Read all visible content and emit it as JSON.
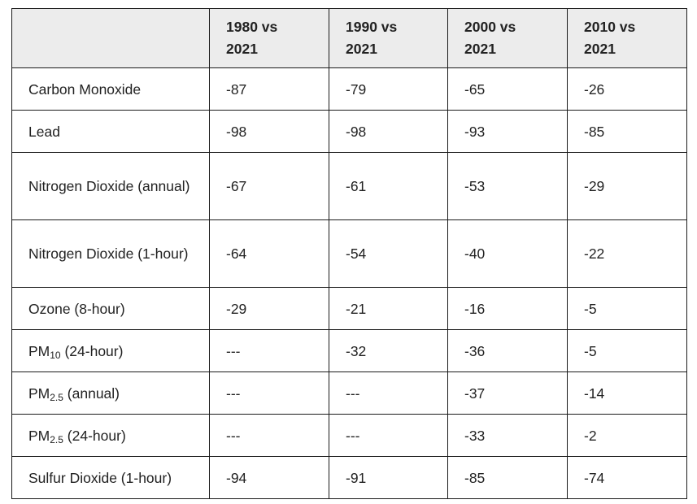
{
  "table": {
    "columns": [
      "",
      "1980 vs 2021",
      "1990 vs 2021",
      "2000 vs 2021",
      "2010 vs 2021"
    ],
    "rows": [
      {
        "base": "Carbon Monoxide",
        "sub": "",
        "suffix": "",
        "values": [
          "-87",
          "-79",
          "-65",
          "-26"
        ]
      },
      {
        "base": "Lead",
        "sub": "",
        "suffix": "",
        "values": [
          "-98",
          "-98",
          "-93",
          "-85"
        ]
      },
      {
        "base": "Nitrogen Dioxide (annual)",
        "sub": "",
        "suffix": "",
        "values": [
          "-67",
          "-61",
          "-53",
          "-29"
        ]
      },
      {
        "base": "Nitrogen Dioxide (1-hour)",
        "sub": "",
        "suffix": "",
        "values": [
          "-64",
          "-54",
          "-40",
          "-22"
        ]
      },
      {
        "base": "Ozone (8-hour)",
        "sub": "",
        "suffix": "",
        "values": [
          "-29",
          "-21",
          "-16",
          "-5"
        ]
      },
      {
        "base": "PM",
        "sub": "10",
        "suffix": " (24-hour)",
        "values": [
          "---",
          "-32",
          "-36",
          "-5"
        ]
      },
      {
        "base": "PM",
        "sub": "2.5",
        "suffix": " (annual)",
        "values": [
          "---",
          "---",
          "-37",
          "-14"
        ]
      },
      {
        "base": "PM",
        "sub": "2.5",
        "suffix": " (24-hour)",
        "values": [
          "---",
          "---",
          "-33",
          "-2"
        ]
      },
      {
        "base": "Sulfur Dioxide (1-hour)",
        "sub": "",
        "suffix": "",
        "values": [
          "-94",
          "-91",
          "-85",
          "-74"
        ]
      }
    ]
  }
}
